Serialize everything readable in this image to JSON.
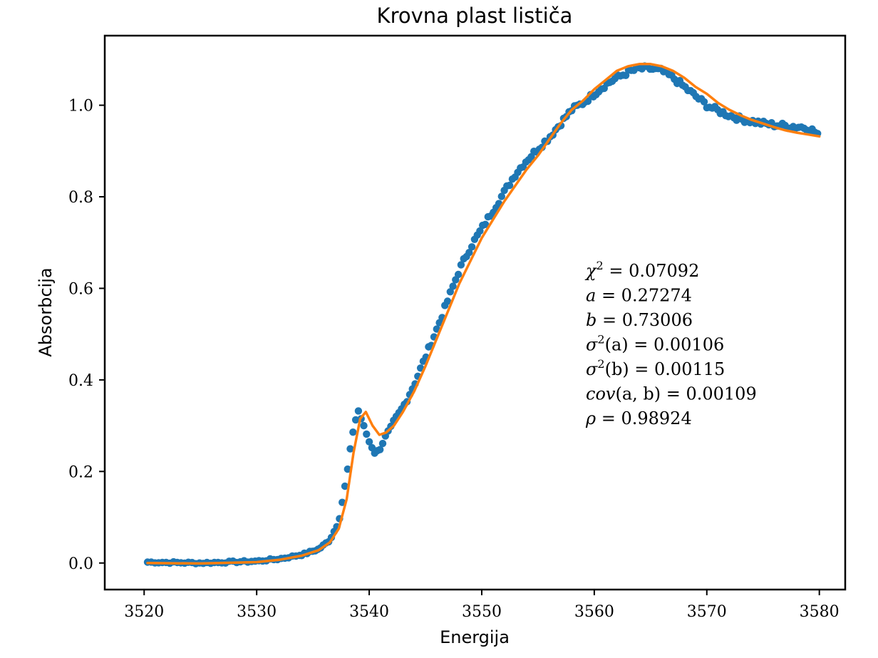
{
  "chart_data": {
    "type": "scatter",
    "title": "Krovna plast lističa",
    "xlabel": "Energija",
    "ylabel": "Absorbcija",
    "xlim": [
      3516.5,
      3582.3
    ],
    "ylim": [
      -0.058,
      1.152
    ],
    "xticks": [
      3520,
      3530,
      3540,
      3550,
      3560,
      3570,
      3580
    ],
    "yticks": [
      0.0,
      0.2,
      0.4,
      0.6,
      0.8,
      1.0
    ],
    "xtick_labels": [
      "3520",
      "3530",
      "3540",
      "3550",
      "3560",
      "3570",
      "3580"
    ],
    "ytick_labels": [
      "0.0",
      "0.2",
      "0.4",
      "0.6",
      "0.8",
      "1.0"
    ],
    "grid": false,
    "legend": "none",
    "colors": {
      "points": "#1f77b4",
      "fit": "#ff7f0e"
    },
    "data_profile": {
      "x": [
        3520.3,
        3525,
        3530,
        3532,
        3534,
        3535.5,
        3536.5,
        3537.3,
        3538.0,
        3538.5,
        3539.0,
        3539.5,
        3540.0,
        3540.5,
        3541.0,
        3541.5,
        3542.0,
        3543.0,
        3544.0,
        3545.0,
        3546.0,
        3547.0,
        3548.0,
        3549.0,
        3550.0,
        3551.0,
        3552.0,
        3553.0,
        3554.0,
        3555.0,
        3556.0,
        3557.0,
        3558.0,
        3559.0,
        3560.0,
        3561.0,
        3562.0,
        3563.0,
        3564.0,
        3565.0,
        3566.0,
        3567.0,
        3568.0,
        3569.0,
        3570.0,
        3571.0,
        3572.0,
        3573.0,
        3574.0,
        3575.0,
        3576.0,
        3577.0,
        3578.0,
        3579.0,
        3580.0
      ],
      "y": [
        0.002,
        0.0,
        0.004,
        0.009,
        0.018,
        0.03,
        0.05,
        0.09,
        0.19,
        0.28,
        0.335,
        0.3,
        0.265,
        0.24,
        0.25,
        0.28,
        0.3,
        0.34,
        0.39,
        0.45,
        0.51,
        0.575,
        0.64,
        0.69,
        0.73,
        0.77,
        0.81,
        0.85,
        0.88,
        0.905,
        0.93,
        0.96,
        0.99,
        1.005,
        1.025,
        1.045,
        1.06,
        1.072,
        1.08,
        1.08,
        1.075,
        1.06,
        1.04,
        1.02,
        1.0,
        0.988,
        0.978,
        0.97,
        0.965,
        0.96,
        0.957,
        0.955,
        0.953,
        0.951,
        0.935
      ]
    },
    "series": [
      {
        "type": "line",
        "x": [
          3520.3,
          3525,
          3530,
          3532,
          3534,
          3535.5,
          3536.5,
          3537.3,
          3538.0,
          3538.6,
          3539.2,
          3539.7,
          3540.3,
          3540.9,
          3541.5,
          3542.2,
          3543.0,
          3544.0,
          3545.0,
          3546.0,
          3547.0,
          3548.0,
          3549.0,
          3550.0,
          3551.0,
          3552.0,
          3553.0,
          3554.0,
          3555.0,
          3556.0,
          3557.0,
          3558.0,
          3559.0,
          3560.0,
          3561.0,
          3562.0,
          3563.0,
          3564.0,
          3565.0,
          3566.0,
          3567.0,
          3568.0,
          3569.0,
          3570.0,
          3571.0,
          3572.0,
          3573.0,
          3574.0,
          3575.0,
          3576.0,
          3577.0,
          3578.0,
          3579.0,
          3580.0
        ],
        "y": [
          0.0,
          -0.001,
          0.002,
          0.007,
          0.016,
          0.028,
          0.045,
          0.075,
          0.14,
          0.24,
          0.315,
          0.33,
          0.3,
          0.28,
          0.285,
          0.3,
          0.33,
          0.375,
          0.43,
          0.49,
          0.55,
          0.61,
          0.66,
          0.71,
          0.75,
          0.79,
          0.825,
          0.86,
          0.89,
          0.925,
          0.96,
          0.99,
          1.01,
          1.035,
          1.055,
          1.075,
          1.085,
          1.09,
          1.09,
          1.085,
          1.075,
          1.06,
          1.04,
          1.025,
          1.005,
          0.99,
          0.978,
          0.968,
          0.96,
          0.952,
          0.945,
          0.94,
          0.936,
          0.932
        ]
      }
    ],
    "annotations": [
      {
        "lhs": "χ",
        "sup": "2",
        "rest": " = 0.07092"
      },
      {
        "lhs": "a",
        "sup": "",
        "rest": " = 0.27274"
      },
      {
        "lhs": "b",
        "sup": "",
        "rest": " = 0.73006"
      },
      {
        "lhs": "σ",
        "sup": "2",
        "rest": "(a) = 0.00106"
      },
      {
        "lhs": "σ",
        "sup": "2",
        "rest": "(b) = 0.00115"
      },
      {
        "lhs": "cov",
        "sup": "",
        "rest": "(a, b) = 0.00109"
      },
      {
        "lhs": "ρ",
        "sup": "",
        "rest": " = 0.98924"
      }
    ]
  }
}
